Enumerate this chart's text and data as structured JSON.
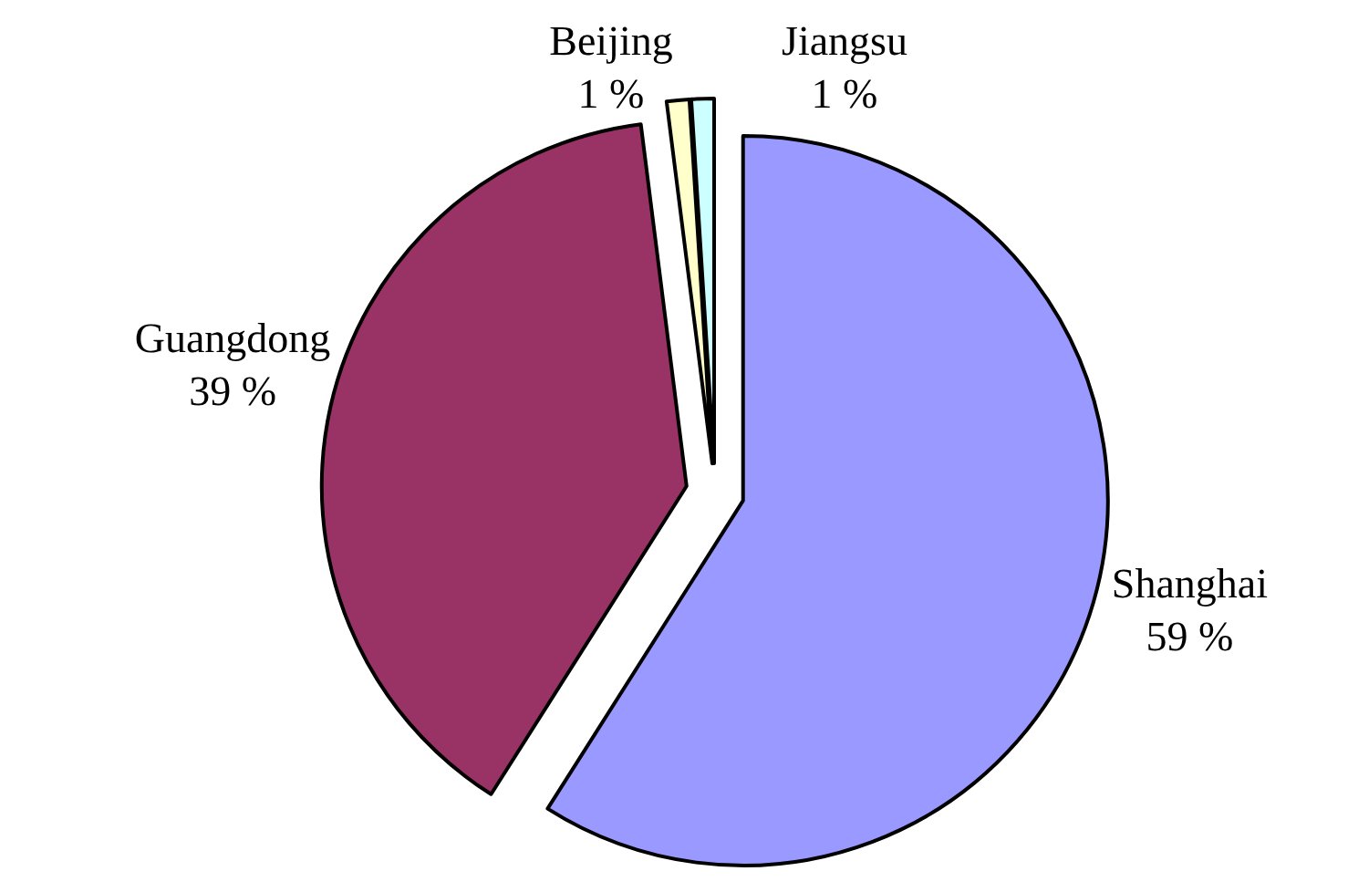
{
  "chart_data": {
    "type": "pie",
    "categories": [
      "Shanghai",
      "Guangdong",
      "Beijing",
      "Jiangsu"
    ],
    "values": [
      59,
      39,
      1,
      1
    ],
    "colors": [
      "#9999ff",
      "#993366",
      "#ffffcc",
      "#ccffff"
    ],
    "value_labels": [
      "59 %",
      "39 %",
      "1 %",
      "1 %"
    ]
  }
}
